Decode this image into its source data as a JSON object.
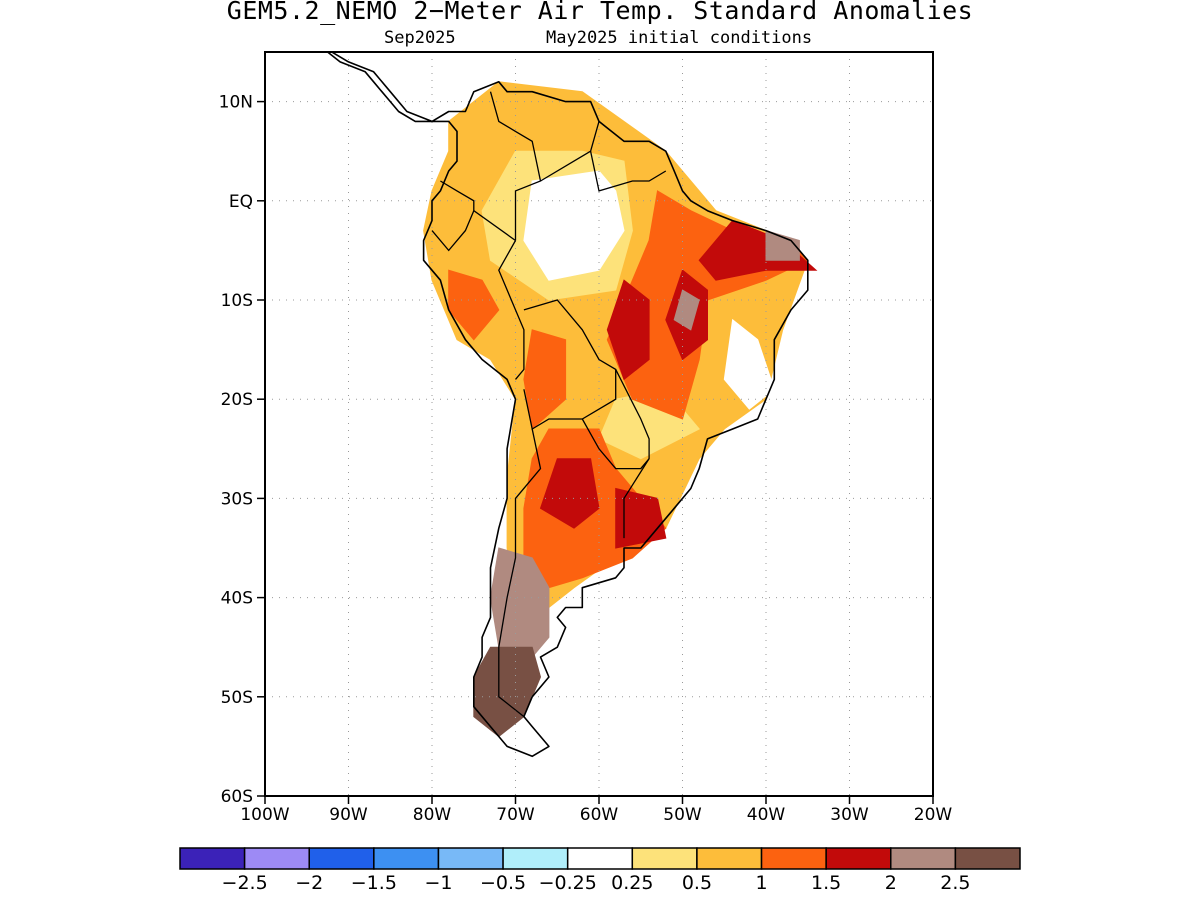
{
  "header": {
    "title": "GEM5.2_NEMO 2−Meter Air Temp. Standard Anomalies",
    "valid_month": "Sep2025",
    "init_label": "May2025 initial conditions"
  },
  "map": {
    "lon_range": [
      -100,
      -20
    ],
    "lat_range": [
      -60,
      15
    ],
    "lat_ticks": [
      {
        "value": 10,
        "label": "10N"
      },
      {
        "value": 0,
        "label": "EQ"
      },
      {
        "value": -10,
        "label": "10S"
      },
      {
        "value": -20,
        "label": "20S"
      },
      {
        "value": -30,
        "label": "30S"
      },
      {
        "value": -40,
        "label": "40S"
      },
      {
        "value": -50,
        "label": "50S"
      },
      {
        "value": -60,
        "label": "60S"
      }
    ],
    "lon_ticks": [
      {
        "value": -100,
        "label": "100W"
      },
      {
        "value": -90,
        "label": "90W"
      },
      {
        "value": -80,
        "label": "80W"
      },
      {
        "value": -70,
        "label": "70W"
      },
      {
        "value": -60,
        "label": "60W"
      },
      {
        "value": -50,
        "label": "50W"
      },
      {
        "value": -40,
        "label": "40W"
      },
      {
        "value": -30,
        "label": "30W"
      },
      {
        "value": -20,
        "label": "20W"
      }
    ],
    "grid": "dotted"
  },
  "colorbar": {
    "colors": [
      "#3b22b8",
      "#9d8af5",
      "#2060ea",
      "#3d90f2",
      "#78b9f7",
      "#b0eefa",
      "#ffffff",
      "#fde27a",
      "#fdbd3a",
      "#fc6210",
      "#c20a0a",
      "#b08a80",
      "#785044"
    ],
    "labels": [
      "−2.5",
      "−2",
      "−1.5",
      "−1",
      "−0.5",
      "−0.25",
      "0.25",
      "0.5",
      "1",
      "1.5",
      "2",
      "2.5"
    ]
  },
  "anomaly_regions": [
    {
      "category": "0.5 to 1",
      "color": "#fdbd3a",
      "polygon": [
        [
          -78,
          8
        ],
        [
          -72,
          12
        ],
        [
          -62,
          11
        ],
        [
          -52,
          5
        ],
        [
          -46,
          -1
        ],
        [
          -40,
          -3
        ],
        [
          -35,
          -6
        ],
        [
          -38,
          -13
        ],
        [
          -40,
          -20
        ],
        [
          -45,
          -23
        ],
        [
          -48,
          -26
        ],
        [
          -52,
          -33
        ],
        [
          -58,
          -36
        ],
        [
          -63,
          -39
        ],
        [
          -66,
          -41
        ],
        [
          -70,
          -40
        ],
        [
          -71,
          -35
        ],
        [
          -71,
          -28
        ],
        [
          -70,
          -20
        ],
        [
          -73,
          -16
        ],
        [
          -77,
          -14
        ],
        [
          -80,
          -8
        ],
        [
          -81,
          -3
        ],
        [
          -80,
          1
        ],
        [
          -78,
          5
        ]
      ]
    },
    {
      "category": "0.25 to 0.5",
      "color": "#fde27a",
      "polygon": [
        [
          -70,
          5
        ],
        [
          -62,
          5
        ],
        [
          -57,
          4
        ],
        [
          -56,
          -3
        ],
        [
          -58,
          -9
        ],
        [
          -66,
          -10
        ],
        [
          -73,
          -6
        ],
        [
          -74,
          -1
        ]
      ]
    },
    {
      "category": "0.25 to 0.5",
      "color": "#fde27a",
      "polygon": [
        [
          -58,
          -20
        ],
        [
          -52,
          -19
        ],
        [
          -48,
          -23
        ],
        [
          -55,
          -26
        ],
        [
          -60,
          -24
        ]
      ]
    },
    {
      "category": "-0.25 to 0.25",
      "color": "#ffffff",
      "polygon": [
        [
          -68,
          2
        ],
        [
          -60,
          3
        ],
        [
          -58,
          1
        ],
        [
          -57,
          -3
        ],
        [
          -60,
          -7
        ],
        [
          -66,
          -8
        ],
        [
          -69,
          -4
        ]
      ]
    },
    {
      "category": "-0.25 to 0.25",
      "color": "#ffffff",
      "polygon": [
        [
          -44,
          -12
        ],
        [
          -41,
          -14
        ],
        [
          -39,
          -19
        ],
        [
          -42,
          -21
        ],
        [
          -45,
          -18
        ]
      ]
    },
    {
      "category": "1 to 1.5",
      "color": "#fc6210",
      "polygon": [
        [
          -53,
          1
        ],
        [
          -49,
          -1
        ],
        [
          -44,
          -3
        ],
        [
          -37,
          -4
        ],
        [
          -35,
          -6
        ],
        [
          -40,
          -8
        ],
        [
          -47,
          -10
        ],
        [
          -48,
          -16
        ],
        [
          -50,
          -22
        ],
        [
          -56,
          -20
        ],
        [
          -59,
          -14
        ],
        [
          -56,
          -8
        ],
        [
          -54,
          -4
        ]
      ]
    },
    {
      "category": "1 to 1.5",
      "color": "#fc6210",
      "polygon": [
        [
          -66,
          -23
        ],
        [
          -60,
          -23
        ],
        [
          -58,
          -27
        ],
        [
          -55,
          -30
        ],
        [
          -52,
          -33
        ],
        [
          -56,
          -36
        ],
        [
          -62,
          -38
        ],
        [
          -66,
          -39
        ],
        [
          -69,
          -36
        ],
        [
          -69,
          -31
        ],
        [
          -68,
          -26
        ]
      ]
    },
    {
      "category": "1 to 1.5",
      "color": "#fc6210",
      "polygon": [
        [
          -78,
          -7
        ],
        [
          -74,
          -8
        ],
        [
          -72,
          -11
        ],
        [
          -75,
          -14
        ],
        [
          -78,
          -11
        ]
      ]
    },
    {
      "category": "1 to 1.5",
      "color": "#fc6210",
      "polygon": [
        [
          -68,
          -13
        ],
        [
          -64,
          -14
        ],
        [
          -64,
          -20
        ],
        [
          -68,
          -23
        ],
        [
          -69,
          -18
        ]
      ]
    },
    {
      "category": "1.5 to 2",
      "color": "#c20a0a",
      "polygon": [
        [
          -44,
          -2
        ],
        [
          -38,
          -4
        ],
        [
          -34,
          -7
        ],
        [
          -40,
          -7
        ],
        [
          -46,
          -8
        ],
        [
          -48,
          -6
        ]
      ]
    },
    {
      "category": "1.5 to 2",
      "color": "#c20a0a",
      "polygon": [
        [
          -50,
          -7
        ],
        [
          -47,
          -9
        ],
        [
          -47,
          -14
        ],
        [
          -50,
          -16
        ],
        [
          -52,
          -12
        ]
      ]
    },
    {
      "category": "1.5 to 2",
      "color": "#c20a0a",
      "polygon": [
        [
          -57,
          -8
        ],
        [
          -54,
          -10
        ],
        [
          -54,
          -16
        ],
        [
          -57,
          -18
        ],
        [
          -59,
          -13
        ]
      ]
    },
    {
      "category": "1.5 to 2",
      "color": "#c20a0a",
      "polygon": [
        [
          -65,
          -26
        ],
        [
          -61,
          -26
        ],
        [
          -60,
          -31
        ],
        [
          -63,
          -33
        ],
        [
          -67,
          -31
        ]
      ]
    },
    {
      "category": "1.5 to 2",
      "color": "#c20a0a",
      "polygon": [
        [
          -58,
          -29
        ],
        [
          -53,
          -30
        ],
        [
          -52,
          -34
        ],
        [
          -58,
          -35
        ]
      ]
    },
    {
      "category": "2 to 2.5",
      "color": "#b08a80",
      "polygon": [
        [
          -72,
          -35
        ],
        [
          -68,
          -36
        ],
        [
          -66,
          -39
        ],
        [
          -66,
          -44
        ],
        [
          -68,
          -46
        ],
        [
          -72,
          -45
        ],
        [
          -73,
          -40
        ]
      ]
    },
    {
      "category": "2 to 2.5",
      "color": "#b08a80",
      "polygon": [
        [
          -50,
          -9
        ],
        [
          -48,
          -10
        ],
        [
          -49,
          -13
        ],
        [
          -51,
          -12
        ]
      ]
    },
    {
      "category": "2 to 2.5",
      "color": "#b08a80",
      "polygon": [
        [
          -40,
          -3
        ],
        [
          -36,
          -4
        ],
        [
          -36,
          -6
        ],
        [
          -40,
          -6
        ]
      ]
    },
    {
      "category": "> 2.5",
      "color": "#785044",
      "polygon": [
        [
          -73,
          -45
        ],
        [
          -68,
          -45
        ],
        [
          -67,
          -48
        ],
        [
          -69,
          -52
        ],
        [
          -72,
          -54
        ],
        [
          -75,
          -52
        ],
        [
          -75,
          -48
        ]
      ]
    }
  ],
  "coastline": [
    [
      -98,
      16
    ],
    [
      -94,
      16
    ],
    [
      -90,
      14
    ],
    [
      -87,
      13
    ],
    [
      -85,
      11
    ],
    [
      -83,
      9
    ],
    [
      -80,
      8
    ],
    [
      -78,
      9
    ],
    [
      -76,
      9
    ],
    [
      -75,
      11
    ],
    [
      -72,
      12
    ],
    [
      -71,
      11
    ],
    [
      -68,
      11
    ],
    [
      -64,
      10
    ],
    [
      -61,
      10
    ],
    [
      -60,
      8
    ],
    [
      -57,
      6
    ],
    [
      -54,
      6
    ],
    [
      -52,
      5
    ],
    [
      -51,
      3
    ],
    [
      -50,
      1
    ],
    [
      -49,
      0
    ],
    [
      -47,
      -1
    ],
    [
      -44,
      -2
    ],
    [
      -40,
      -3
    ],
    [
      -37,
      -4
    ],
    [
      -35,
      -6
    ],
    [
      -35,
      -9
    ],
    [
      -37,
      -11
    ],
    [
      -39,
      -14
    ],
    [
      -39,
      -18
    ],
    [
      -40,
      -20
    ],
    [
      -41,
      -22
    ],
    [
      -44,
      -23
    ],
    [
      -47,
      -24
    ],
    [
      -48,
      -27
    ],
    [
      -49,
      -29
    ],
    [
      -51,
      -31
    ],
    [
      -53,
      -33
    ],
    [
      -55,
      -35
    ],
    [
      -57,
      -35
    ],
    [
      -57,
      -37
    ],
    [
      -58,
      -38
    ],
    [
      -62,
      -39
    ],
    [
      -62,
      -41
    ],
    [
      -64,
      -41
    ],
    [
      -65,
      -42
    ],
    [
      -64,
      -43
    ],
    [
      -65,
      -45
    ],
    [
      -67,
      -46
    ],
    [
      -66,
      -48
    ],
    [
      -68,
      -50
    ],
    [
      -69,
      -52
    ],
    [
      -68,
      -53
    ],
    [
      -66,
      -55
    ],
    [
      -68,
      -56
    ],
    [
      -71,
      -55
    ],
    [
      -73,
      -53
    ],
    [
      -75,
      -51
    ],
    [
      -75,
      -48
    ],
    [
      -74,
      -46
    ],
    [
      -74,
      -44
    ],
    [
      -73,
      -42
    ],
    [
      -73,
      -39
    ],
    [
      -73,
      -37
    ],
    [
      -72,
      -33
    ],
    [
      -71,
      -30
    ],
    [
      -71,
      -25
    ],
    [
      -70,
      -20
    ],
    [
      -71,
      -18
    ],
    [
      -74,
      -16
    ],
    [
      -76,
      -14
    ],
    [
      -78,
      -11
    ],
    [
      -79,
      -8
    ],
    [
      -81,
      -6
    ],
    [
      -81,
      -4
    ],
    [
      -80,
      -2
    ],
    [
      -80,
      0
    ],
    [
      -79,
      1
    ],
    [
      -78,
      3
    ],
    [
      -77,
      4
    ],
    [
      -77,
      7
    ],
    [
      -78,
      8
    ],
    [
      -80,
      8
    ],
    [
      -82,
      8
    ],
    [
      -84,
      9
    ],
    [
      -85,
      10
    ],
    [
      -86,
      11
    ],
    [
      -87,
      12
    ],
    [
      -88,
      13
    ],
    [
      -91,
      14
    ],
    [
      -94,
      16
    ],
    [
      -98,
      16
    ]
  ],
  "borders": [
    [
      [
        -73,
        11
      ],
      [
        -72,
        8
      ],
      [
        -70,
        7
      ],
      [
        -68,
        6
      ],
      [
        -67,
        2
      ],
      [
        -70,
        1
      ],
      [
        -70,
        -4
      ]
    ],
    [
      [
        -79,
        2
      ],
      [
        -77,
        1
      ],
      [
        -75,
        0
      ],
      [
        -75,
        -1
      ],
      [
        -70,
        -4
      ]
    ],
    [
      [
        -80,
        -3
      ],
      [
        -78,
        -5
      ],
      [
        -76,
        -3
      ],
      [
        -75,
        -1
      ]
    ],
    [
      [
        -70,
        -4
      ],
      [
        -72,
        -7
      ],
      [
        -70,
        -11
      ],
      [
        -69,
        -13
      ],
      [
        -69,
        -17
      ],
      [
        -70,
        -18
      ]
    ],
    [
      [
        -67,
        2
      ],
      [
        -63,
        4
      ],
      [
        -61,
        5
      ],
      [
        -60,
        8
      ]
    ],
    [
      [
        -61,
        5
      ],
      [
        -60,
        1
      ],
      [
        -56,
        2
      ],
      [
        -54,
        2
      ],
      [
        -52,
        3
      ]
    ],
    [
      [
        -69,
        -11
      ],
      [
        -65,
        -10
      ],
      [
        -62,
        -13
      ],
      [
        -60,
        -16
      ],
      [
        -58,
        -17
      ],
      [
        -58,
        -20
      ],
      [
        -62,
        -22
      ],
      [
        -66,
        -22
      ],
      [
        -68,
        -23
      ],
      [
        -69,
        -19
      ]
    ],
    [
      [
        -58,
        -17
      ],
      [
        -55,
        -22
      ],
      [
        -54,
        -24
      ],
      [
        -54,
        -26
      ],
      [
        -55,
        -27
      ],
      [
        -58,
        -27
      ],
      [
        -60,
        -25
      ],
      [
        -62,
        -22
      ]
    ],
    [
      [
        -54,
        -26
      ],
      [
        -57,
        -30
      ],
      [
        -57,
        -34
      ]
    ],
    [
      [
        -68,
        -23
      ],
      [
        -67,
        -27
      ],
      [
        -70,
        -30
      ],
      [
        -70,
        -36
      ],
      [
        -71,
        -40
      ],
      [
        -72,
        -45
      ],
      [
        -72,
        -50
      ],
      [
        -69,
        -52
      ]
    ]
  ]
}
